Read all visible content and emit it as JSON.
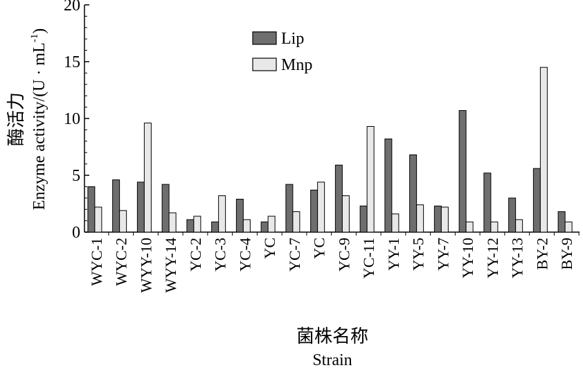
{
  "chart_data": {
    "type": "bar",
    "xlabel_cn": "菌株名称",
    "xlabel": "Strain",
    "ylabel_cn": "酶活力",
    "ylabel": "Enzyme activity/(U · mL",
    "ylabel_sup": "-1",
    "ylabel_close": ")",
    "ylim": [
      0,
      20
    ],
    "yticks": [
      0,
      5,
      10,
      15,
      20
    ],
    "legend_position": "top-center",
    "categories": [
      "WYC-1",
      "WYC-2",
      "WYY-10",
      "WYY-14",
      "YC-2",
      "YC-3",
      "YC-4",
      "YC",
      "YC-7",
      "YC",
      "YC-9",
      "YC-11",
      "YY-1",
      "YY-5",
      "YY-7",
      "YY-10",
      "YY-12",
      "YY-13",
      "BY-2",
      "BY-9"
    ],
    "series": [
      {
        "name": "Lip",
        "color": "#6e6e6e",
        "values": [
          4.0,
          4.6,
          4.4,
          4.2,
          1.1,
          0.9,
          2.9,
          0.9,
          4.2,
          3.7,
          5.9,
          2.3,
          8.2,
          6.8,
          2.3,
          10.7,
          5.2,
          3.0,
          5.6,
          1.8
        ]
      },
      {
        "name": "Mnp",
        "color": "#e8e8e8",
        "values": [
          2.2,
          1.9,
          9.6,
          1.7,
          1.4,
          3.2,
          1.1,
          1.4,
          1.8,
          4.4,
          3.2,
          9.3,
          1.6,
          2.4,
          2.2,
          0.9,
          0.9,
          1.1,
          14.5,
          0.9
        ]
      }
    ]
  }
}
